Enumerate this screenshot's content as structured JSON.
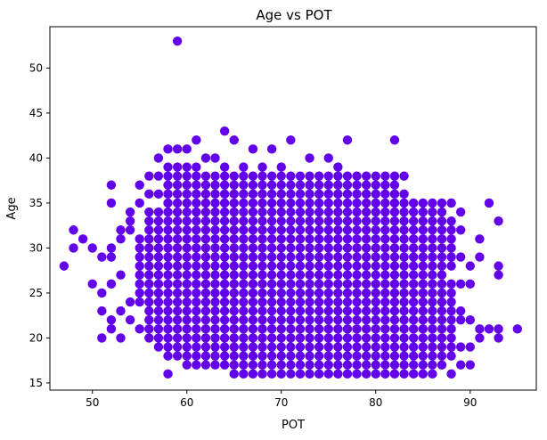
{
  "chart_data": {
    "type": "scatter",
    "title": "Age vs POT",
    "xlabel": "POT",
    "ylabel": "Age",
    "xlim": [
      45.5,
      97.0
    ],
    "ylim": [
      14.2,
      54.6
    ],
    "xticks": [
      50,
      60,
      70,
      80,
      90
    ],
    "yticks": [
      15,
      20,
      25,
      30,
      35,
      40,
      45,
      50
    ],
    "grid": false,
    "legend": "none",
    "marker_color": "#6200ea",
    "series": [
      {
        "points": [
          [
            59,
            53
          ],
          [
            64,
            43
          ],
          [
            65,
            42
          ],
          [
            61,
            42
          ],
          [
            71,
            42
          ],
          [
            77,
            42
          ],
          [
            82,
            42
          ],
          [
            58,
            41
          ],
          [
            59,
            41
          ],
          [
            60,
            41
          ],
          [
            67,
            41
          ],
          [
            69,
            41
          ],
          [
            57,
            40
          ],
          [
            62,
            40
          ],
          [
            63,
            40
          ],
          [
            73,
            40
          ],
          [
            75,
            40
          ],
          [
            58,
            39
          ],
          [
            59,
            39
          ],
          [
            60,
            39
          ],
          [
            61,
            39
          ],
          [
            64,
            39
          ],
          [
            66,
            39
          ],
          [
            68,
            39
          ],
          [
            70,
            39
          ],
          [
            76,
            39
          ],
          [
            56,
            38
          ],
          [
            57,
            38
          ],
          [
            82,
            38
          ],
          [
            83,
            38
          ],
          [
            52,
            37
          ],
          [
            55,
            37
          ],
          [
            56,
            36
          ],
          [
            57,
            36
          ],
          [
            52,
            35
          ],
          [
            55,
            35
          ],
          [
            54,
            34
          ],
          [
            84,
            35
          ],
          [
            87,
            35
          ],
          [
            88,
            35
          ],
          [
            92,
            35
          ],
          [
            54,
            33
          ],
          [
            56,
            33
          ],
          [
            57,
            33
          ],
          [
            89,
            34
          ],
          [
            93,
            33
          ],
          [
            48,
            32
          ],
          [
            53,
            32
          ],
          [
            54,
            32
          ],
          [
            89,
            32
          ],
          [
            49,
            31
          ],
          [
            53,
            31
          ],
          [
            91,
            31
          ],
          [
            47,
            28
          ],
          [
            48,
            30
          ],
          [
            50,
            30
          ],
          [
            52,
            30
          ],
          [
            51,
            29
          ],
          [
            52,
            29
          ],
          [
            89,
            29
          ],
          [
            90,
            28
          ],
          [
            91,
            29
          ],
          [
            93,
            28
          ],
          [
            93,
            27
          ],
          [
            53,
            27
          ],
          [
            50,
            26
          ],
          [
            52,
            26
          ],
          [
            51,
            25
          ],
          [
            88,
            26
          ],
          [
            89,
            26
          ],
          [
            90,
            26
          ],
          [
            51,
            23
          ],
          [
            53,
            23
          ],
          [
            54,
            24
          ],
          [
            89,
            23
          ],
          [
            89,
            22
          ],
          [
            52,
            22
          ],
          [
            54,
            22
          ],
          [
            90,
            22
          ],
          [
            91,
            21
          ],
          [
            92,
            21
          ],
          [
            93,
            21
          ],
          [
            95,
            21
          ],
          [
            52,
            21
          ],
          [
            55,
            21
          ],
          [
            51,
            20
          ],
          [
            53,
            20
          ],
          [
            91,
            20
          ],
          [
            93,
            20
          ],
          [
            89,
            19
          ],
          [
            90,
            19
          ],
          [
            58,
            18
          ],
          [
            59,
            18
          ],
          [
            88,
            18
          ],
          [
            89,
            17
          ],
          [
            90,
            17
          ],
          [
            88,
            16
          ],
          [
            58,
            16
          ],
          [
            60,
            17
          ],
          [
            61,
            17
          ]
        ],
        "bands": [
          {
            "y": 38,
            "x0": 58,
            "x1": 82
          },
          {
            "y": 37,
            "x0": 58,
            "x1": 82
          },
          {
            "y": 36,
            "x0": 58,
            "x1": 83
          },
          {
            "y": 35,
            "x0": 58,
            "x1": 86
          },
          {
            "y": 34,
            "x0": 56,
            "x1": 87
          },
          {
            "y": 33,
            "x0": 58,
            "x1": 88
          },
          {
            "y": 32,
            "x0": 56,
            "x1": 88
          },
          {
            "y": 31,
            "x0": 55,
            "x1": 88
          },
          {
            "y": 30,
            "x0": 55,
            "x1": 88
          },
          {
            "y": 29,
            "x0": 55,
            "x1": 88
          },
          {
            "y": 28,
            "x0": 55,
            "x1": 88
          },
          {
            "y": 27,
            "x0": 55,
            "x1": 87
          },
          {
            "y": 26,
            "x0": 55,
            "x1": 87
          },
          {
            "y": 25,
            "x0": 55,
            "x1": 88
          },
          {
            "y": 24,
            "x0": 55,
            "x1": 88
          },
          {
            "y": 23,
            "x0": 56,
            "x1": 88
          },
          {
            "y": 22,
            "x0": 56,
            "x1": 88
          },
          {
            "y": 21,
            "x0": 56,
            "x1": 88
          },
          {
            "y": 20,
            "x0": 56,
            "x1": 88
          },
          {
            "y": 19,
            "x0": 57,
            "x1": 88
          },
          {
            "y": 18,
            "x0": 60,
            "x1": 87
          },
          {
            "y": 17,
            "x0": 62,
            "x1": 87
          },
          {
            "y": 16,
            "x0": 65,
            "x1": 86
          }
        ]
      }
    ]
  }
}
